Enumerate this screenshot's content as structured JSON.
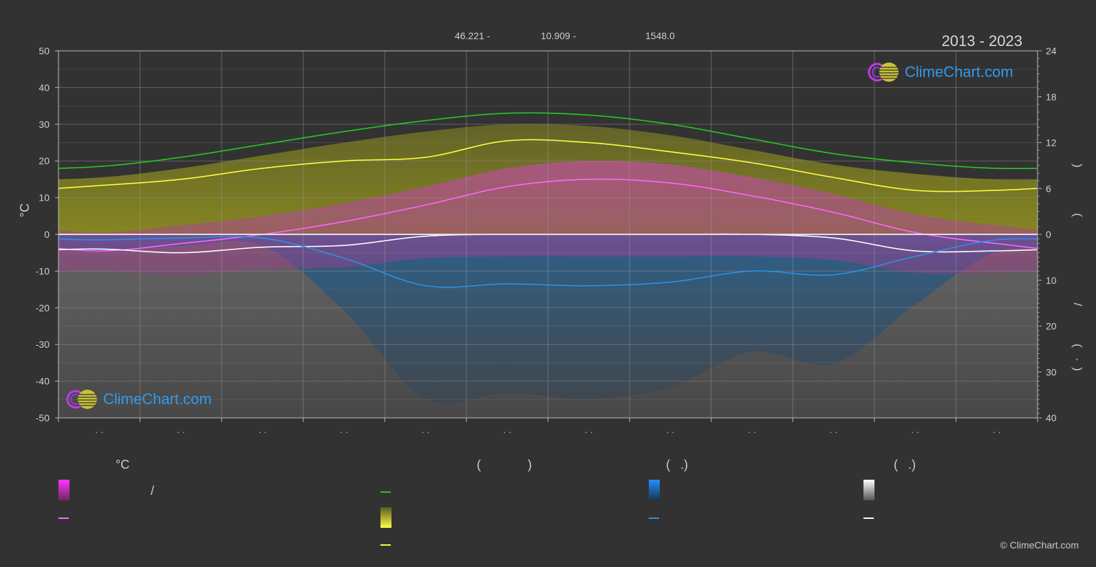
{
  "header": {
    "lat": "46.221 -",
    "lon": "10.909 -",
    "elev": "1548.0",
    "year_range": "2013 - 2023",
    "logo_text": "ClimeChart.com"
  },
  "chart_data": {
    "type": "area",
    "left_axis": {
      "label": "°C",
      "ylim": [
        -50,
        50
      ],
      "ticks": [
        50,
        40,
        30,
        20,
        10,
        0,
        -10,
        -20,
        -30,
        -40,
        -50
      ]
    },
    "right_axis": {
      "upper_ticks": [
        "24",
        "18",
        "12",
        "6",
        "0"
      ],
      "lower_ticks": [
        "10",
        "20",
        "30",
        "40"
      ],
      "label_fragments": [
        ")",
        "(",
        "/",
        "(",
        "·",
        ")"
      ],
      "sun_hours_range": [
        0,
        24
      ],
      "precip_mm_range": [
        0,
        40
      ]
    },
    "x": {
      "months": 12,
      "tick_labels": [
        "· ·",
        "· ·",
        "· ·",
        "· ·",
        "· ·",
        "· ·",
        "· ·",
        "· ·",
        "· ·",
        "· ·",
        "· ·",
        "· ·"
      ]
    },
    "series": [
      {
        "key": "daylight",
        "color": "#22cc22",
        "values": [
          18.5,
          21,
          24.5,
          28,
          31,
          33,
          32.5,
          30,
          26,
          22,
          19.5,
          18
        ]
      },
      {
        "key": "sunshine",
        "color": "#ffff44",
        "values": [
          13.3,
          15,
          18,
          20,
          21,
          25.5,
          25,
          22.5,
          19.5,
          15.5,
          12,
          12
        ]
      },
      {
        "key": "temp_max_mean",
        "color": "#ff66ff",
        "values": [
          -4.5,
          -2.5,
          0,
          3.5,
          8,
          13,
          15,
          14,
          10.5,
          6,
          0.5,
          -2.5
        ]
      },
      {
        "key": "temp_min_mean",
        "color": "#ffffff",
        "values": [
          -4,
          -5,
          -3.5,
          -3,
          -0.5,
          0,
          0,
          0,
          0,
          -1,
          -4.5,
          -4.5
        ]
      },
      {
        "key": "precip_mean",
        "color": "#2f8fe8",
        "values": [
          -1.5,
          -1,
          -1,
          -6.5,
          -14,
          -13.5,
          -14,
          -13,
          -10,
          -11,
          -6,
          -1.5
        ]
      }
    ]
  },
  "legend": {
    "col1_title": "°C",
    "col1_row1_text": "/",
    "col2_title_left": "(",
    "col2_title_right": ")",
    "col3_title": "(   .)",
    "col4_title": "(   .)",
    "colors": {
      "temp_band": "#e43ae4",
      "temp_line": "#ff66ff",
      "daylight": "#22cc22",
      "sun_band": "#e8e83a",
      "sun_line": "#ffff44",
      "precip_band": "#1f7fe0",
      "precip_line": "#2f8fe8",
      "snow_band": "#e8e8e8",
      "snow_line": "#ffffff"
    }
  },
  "copyright": "© ClimeChart.com"
}
